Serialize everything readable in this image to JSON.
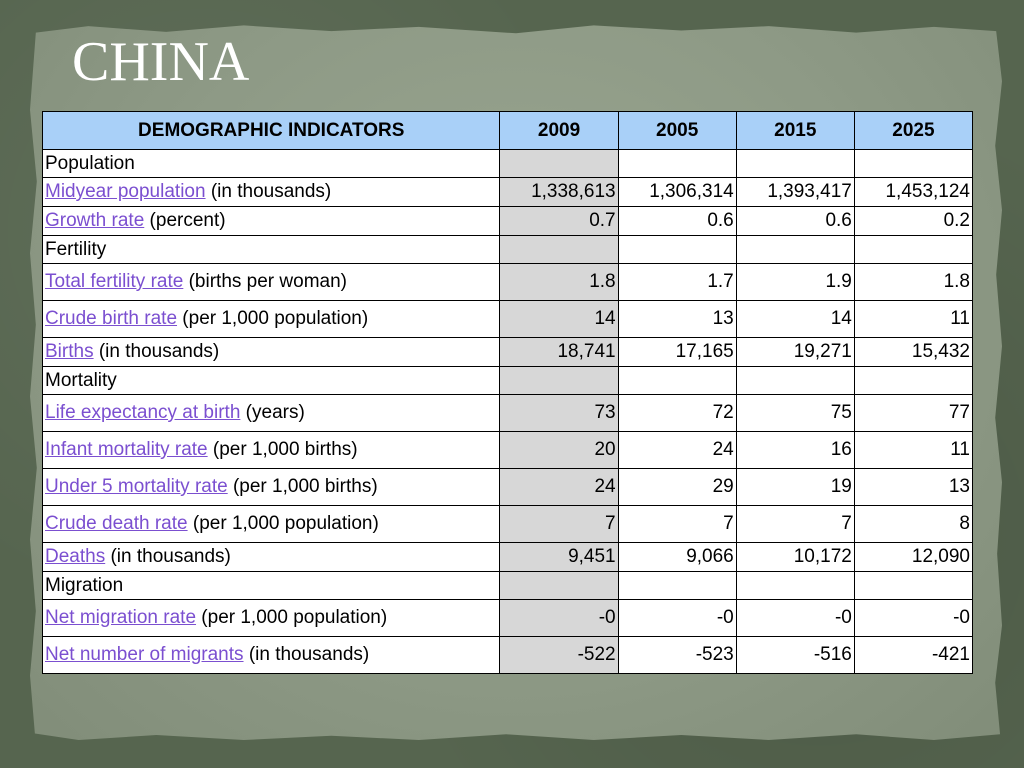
{
  "title": "CHINA",
  "table": {
    "headers": [
      "DEMOGRAPHIC INDICATORS",
      "2009",
      "2005",
      "2015",
      "2025"
    ],
    "sections": [
      {
        "name": "Population",
        "rows": [
          {
            "link": "Midyear population",
            "unit": "(in thousands)",
            "values": [
              "1,338,613",
              "1,306,314",
              "1,393,417",
              "1,453,124"
            ]
          },
          {
            "link": "Growth rate",
            "unit": "(percent)",
            "values": [
              "0.7",
              "0.6",
              "0.6",
              "0.2"
            ]
          }
        ]
      },
      {
        "name": "Fertility",
        "rows": [
          {
            "link": "Total fertility rate",
            "unit": "(births per woman)",
            "values": [
              "1.8",
              "1.7",
              "1.9",
              "1.8"
            ]
          },
          {
            "link": "Crude birth rate",
            "unit": "(per 1,000 population)",
            "values": [
              "14",
              "13",
              "14",
              "11"
            ]
          },
          {
            "link": "Births",
            "unit": "(in thousands)",
            "values": [
              "18,741",
              "17,165",
              "19,271",
              "15,432"
            ]
          }
        ]
      },
      {
        "name": "Mortality",
        "rows": [
          {
            "link": "Life expectancy at birth",
            "unit": "(years)",
            "values": [
              "73",
              "72",
              "75",
              "77"
            ]
          },
          {
            "link": "Infant mortality rate",
            "unit": "(per 1,000 births)",
            "values": [
              "20",
              "24",
              "16",
              "11"
            ]
          },
          {
            "link": "Under 5 mortality rate",
            "unit": "(per 1,000 births)",
            "values": [
              "24",
              "29",
              "19",
              "13"
            ]
          },
          {
            "link": "Crude death rate",
            "unit": "(per 1,000 population)",
            "values": [
              "7",
              "7",
              "7",
              "8"
            ]
          },
          {
            "link": "Deaths",
            "unit": "(in thousands)",
            "values": [
              "9,451",
              "9,066",
              "10,172",
              "12,090"
            ]
          }
        ]
      },
      {
        "name": "Migration",
        "rows": [
          {
            "link": "Net migration rate",
            "unit": "(per 1,000 population)",
            "values": [
              "-0",
              "-0",
              "-0",
              "-0"
            ]
          },
          {
            "link": "Net number of migrants",
            "unit": "(in thousands)",
            "values": [
              "-522",
              "-523",
              "-516",
              "-421"
            ]
          }
        ]
      }
    ]
  },
  "colors": {
    "header_bg": "#a9d0f8",
    "link": "#7b4fd0",
    "highlight_col": "#d7d7d7",
    "slide_bg": "#56654f"
  }
}
